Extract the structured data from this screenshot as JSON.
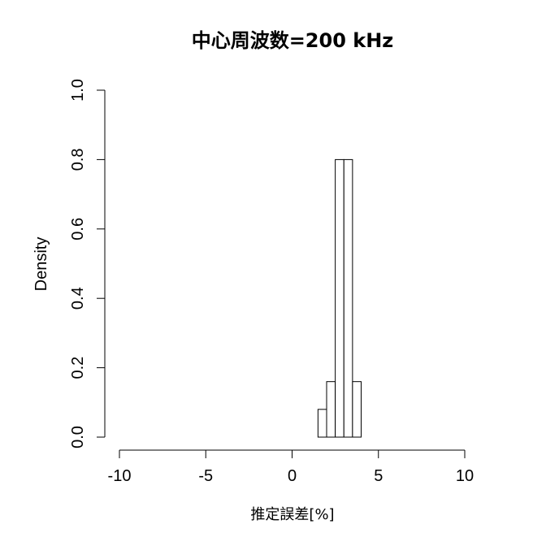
{
  "chart_data": {
    "type": "bar",
    "title": "中心周波数=200 kHz",
    "xlabel": "推定誤差[%]",
    "ylabel": "Density",
    "xlim": [
      -10,
      10
    ],
    "ylim": [
      0,
      1.0
    ],
    "x_ticks": [
      -10,
      -5,
      0,
      5,
      10
    ],
    "x_tick_labels": [
      "-10",
      "-5",
      "0",
      "5",
      "10"
    ],
    "y_ticks": [
      0.0,
      0.2,
      0.4,
      0.6,
      0.8,
      1.0
    ],
    "y_tick_labels": [
      "0.0",
      "0.2",
      "0.4",
      "0.6",
      "0.8",
      "1.0"
    ],
    "bins": [
      {
        "x0": 1.5,
        "x1": 2.0,
        "density": 0.08
      },
      {
        "x0": 2.0,
        "x1": 2.5,
        "density": 0.16
      },
      {
        "x0": 2.5,
        "x1": 3.0,
        "density": 0.8
      },
      {
        "x0": 3.0,
        "x1": 3.5,
        "density": 0.8
      },
      {
        "x0": 3.5,
        "x1": 4.0,
        "density": 0.16
      }
    ],
    "grid": false,
    "legend": "none"
  }
}
